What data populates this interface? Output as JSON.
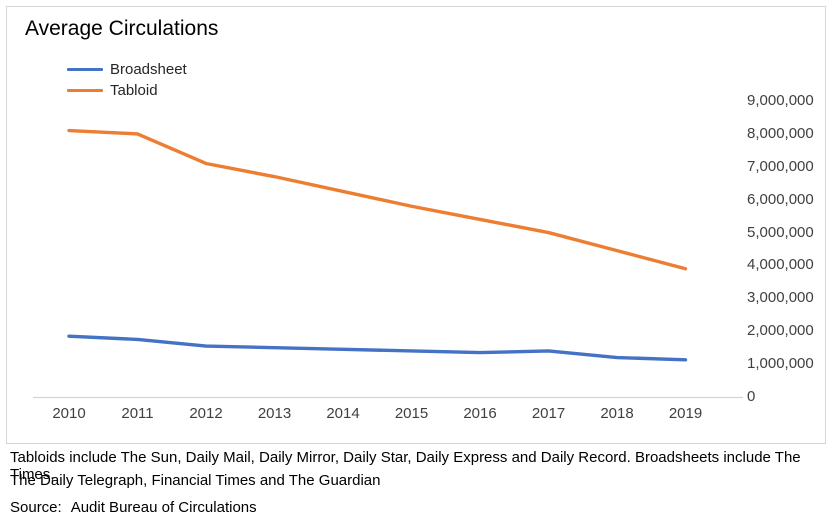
{
  "chart": {
    "title": "Average Circulations"
  },
  "chart_data": {
    "type": "line",
    "title": "Average Circulations",
    "categories": [
      "2010",
      "2011",
      "2012",
      "2013",
      "2014",
      "2015",
      "2016",
      "2017",
      "2018",
      "2019"
    ],
    "series": [
      {
        "name": "Broadsheet",
        "color": "#4472C4",
        "values": [
          1850000,
          1750000,
          1550000,
          1500000,
          1450000,
          1400000,
          1350000,
          1400000,
          1200000,
          1130000
        ]
      },
      {
        "name": "Tabloid",
        "color": "#ED7D31",
        "values": [
          8100000,
          8000000,
          7100000,
          6700000,
          6250000,
          5800000,
          5400000,
          5000000,
          4450000,
          3900000
        ]
      }
    ],
    "xlabel": "",
    "ylabel": "",
    "ylim": [
      0,
      9000000
    ],
    "y_ticks": [
      "0",
      "1,000,000",
      "2,000,000",
      "3,000,000",
      "4,000,000",
      "5,000,000",
      "6,000,000",
      "7,000,000",
      "8,000,000",
      "9,000,000"
    ],
    "y_axis_side": "right",
    "grid": false,
    "legend_position": "top-left",
    "axis_line_color": "#D6D6D6"
  },
  "footnote": {
    "lines": [
      "Tabloids include The Sun, Daily Mail, Daily Mirror, Daily Star, Daily Express and Daily Record. Broadsheets include The Times,",
      "The Daily Telegraph, Financial Times and The Guardian"
    ],
    "source_label": "Source:",
    "source_text": "Audit Bureau of Circulations"
  }
}
